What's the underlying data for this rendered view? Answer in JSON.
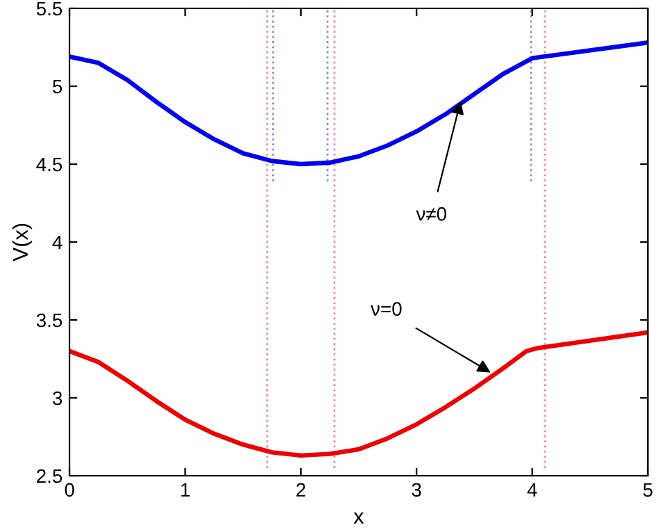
{
  "chart_data": {
    "type": "line",
    "xlabel": "x",
    "ylabel": "V(x)",
    "xlim": [
      0,
      5
    ],
    "ylim": [
      2.5,
      5.5
    ],
    "xticks": [
      0,
      1,
      2,
      3,
      4,
      5
    ],
    "yticks": [
      2.5,
      3,
      3.5,
      4,
      4.5,
      5,
      5.5
    ],
    "grid": false,
    "marker": "none",
    "line_style": "solid",
    "series": [
      {
        "color": "#0000ee",
        "x": [
          0,
          0.25,
          0.5,
          0.75,
          1,
          1.25,
          1.5,
          1.75,
          2,
          2.25,
          2.5,
          2.75,
          3,
          3.25,
          3.5,
          3.75,
          4,
          4.1,
          5
        ],
        "values": [
          5.19,
          5.15,
          5.04,
          4.9,
          4.77,
          4.66,
          4.57,
          4.52,
          4.5,
          4.51,
          4.55,
          4.62,
          4.71,
          4.82,
          4.95,
          5.08,
          5.18,
          5.19,
          5.28
        ]
      },
      {
        "color": "#ee0000",
        "x": [
          0,
          0.25,
          0.5,
          0.75,
          1,
          1.25,
          1.5,
          1.75,
          2,
          2.25,
          2.5,
          2.75,
          3,
          3.25,
          3.5,
          3.75,
          3.95,
          4.05,
          5
        ],
        "values": [
          3.3,
          3.23,
          3.11,
          2.98,
          2.86,
          2.77,
          2.7,
          2.65,
          2.63,
          2.64,
          2.67,
          2.74,
          2.83,
          2.94,
          3.06,
          3.19,
          3.3,
          3.32,
          3.42
        ]
      },
      {
        "color": "#8888dd",
        "line_style": "dotted",
        "x": [
          1.76,
          1.76
        ],
        "values": [
          4.39,
          5.5
        ]
      },
      {
        "color": "#8888dd",
        "line_style": "dotted",
        "x": [
          2.23,
          2.23
        ],
        "values": [
          4.39,
          5.5
        ]
      },
      {
        "color": "#8888dd",
        "line_style": "dotted",
        "x": [
          3.99,
          3.99
        ],
        "values": [
          4.39,
          5.5
        ]
      },
      {
        "color": "#ee88aa",
        "line_style": "dotted",
        "x": [
          1.71,
          1.71
        ],
        "values": [
          2.55,
          5.5
        ]
      },
      {
        "color": "#ee88aa",
        "line_style": "dotted",
        "x": [
          2.29,
          2.29
        ],
        "values": [
          2.55,
          5.5
        ]
      },
      {
        "color": "#ee88aa",
        "line_style": "dotted",
        "x": [
          4.11,
          4.11
        ],
        "values": [
          2.55,
          5.5
        ]
      }
    ],
    "annotations": [
      {
        "text": "ν≠0",
        "x": 3.39,
        "y": 4.93
      },
      {
        "text": "ν=0",
        "x": 3.67,
        "y": 3.15
      }
    ]
  }
}
